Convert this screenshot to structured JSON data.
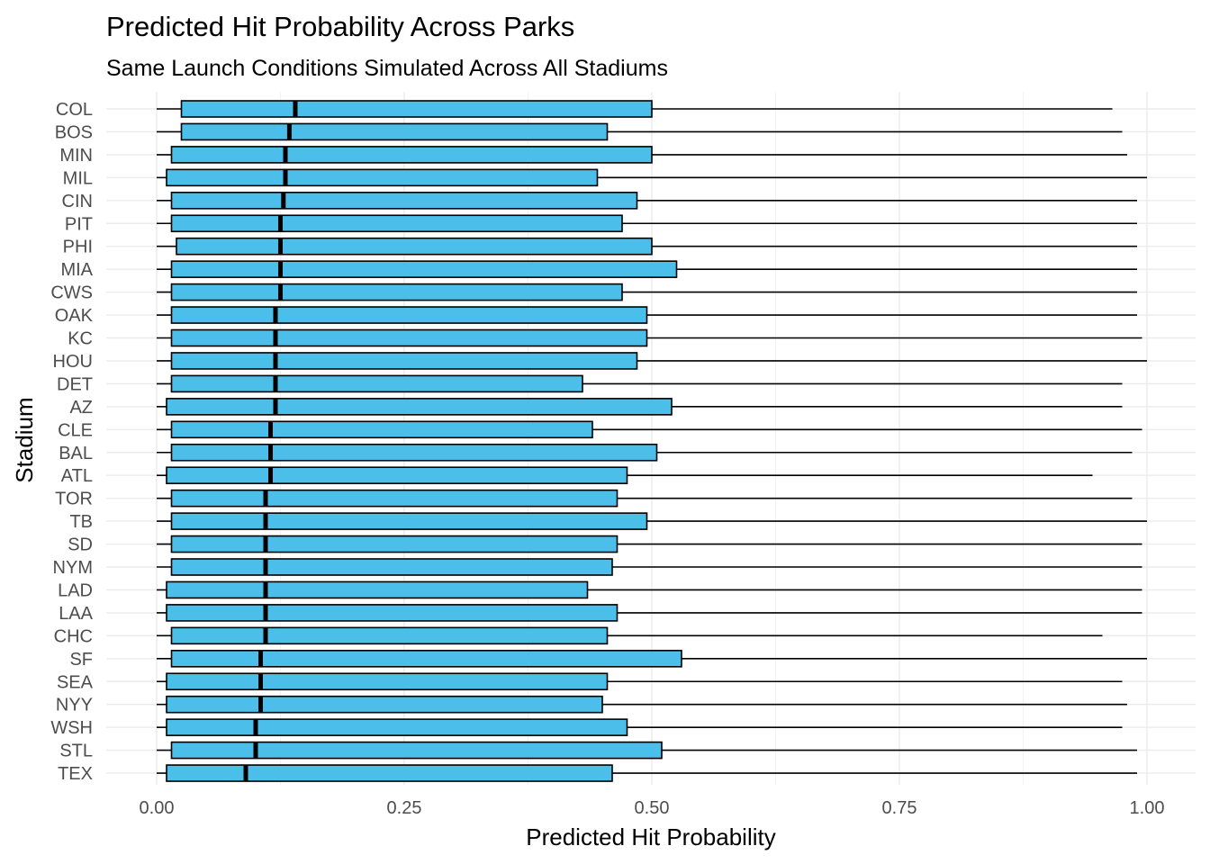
{
  "chart_data": {
    "type": "boxplot",
    "title": "Predicted Hit Probability Across Parks",
    "subtitle": "Same Launch Conditions Simulated Across All Stadiums",
    "xlabel": "Predicted Hit Probability",
    "ylabel": "Stadium",
    "xlim": [
      0,
      1
    ],
    "x_ticks": [
      "0.00",
      "0.25",
      "0.50",
      "0.75",
      "1.00"
    ],
    "grid": true,
    "legend": "none",
    "fill_color": "#4bbfea",
    "outline_color": "#000000",
    "categories": [
      "COL",
      "BOS",
      "MIN",
      "MIL",
      "CIN",
      "PIT",
      "PHI",
      "MIA",
      "CWS",
      "OAK",
      "KC",
      "HOU",
      "DET",
      "AZ",
      "CLE",
      "BAL",
      "ATL",
      "TOR",
      "TB",
      "SD",
      "NYM",
      "LAD",
      "LAA",
      "CHC",
      "SF",
      "SEA",
      "NYY",
      "WSH",
      "STL",
      "TEX"
    ],
    "series": [
      {
        "category": "COL",
        "min": 0.0,
        "q1": 0.025,
        "median": 0.14,
        "q3": 0.5,
        "max": 0.965
      },
      {
        "category": "BOS",
        "min": 0.0,
        "q1": 0.025,
        "median": 0.134,
        "q3": 0.455,
        "max": 0.975
      },
      {
        "category": "MIN",
        "min": 0.0,
        "q1": 0.015,
        "median": 0.13,
        "q3": 0.5,
        "max": 0.98
      },
      {
        "category": "MIL",
        "min": 0.0,
        "q1": 0.01,
        "median": 0.13,
        "q3": 0.445,
        "max": 1.0
      },
      {
        "category": "CIN",
        "min": 0.0,
        "q1": 0.015,
        "median": 0.128,
        "q3": 0.485,
        "max": 0.99
      },
      {
        "category": "PIT",
        "min": 0.0,
        "q1": 0.015,
        "median": 0.125,
        "q3": 0.47,
        "max": 0.99
      },
      {
        "category": "PHI",
        "min": 0.0,
        "q1": 0.02,
        "median": 0.125,
        "q3": 0.5,
        "max": 0.99
      },
      {
        "category": "MIA",
        "min": 0.0,
        "q1": 0.015,
        "median": 0.125,
        "q3": 0.525,
        "max": 0.99
      },
      {
        "category": "CWS",
        "min": 0.0,
        "q1": 0.015,
        "median": 0.125,
        "q3": 0.47,
        "max": 0.99
      },
      {
        "category": "OAK",
        "min": 0.0,
        "q1": 0.015,
        "median": 0.12,
        "q3": 0.495,
        "max": 0.99
      },
      {
        "category": "KC",
        "min": 0.0,
        "q1": 0.015,
        "median": 0.12,
        "q3": 0.495,
        "max": 0.995
      },
      {
        "category": "HOU",
        "min": 0.0,
        "q1": 0.015,
        "median": 0.12,
        "q3": 0.485,
        "max": 1.0
      },
      {
        "category": "DET",
        "min": 0.0,
        "q1": 0.015,
        "median": 0.12,
        "q3": 0.43,
        "max": 0.975
      },
      {
        "category": "AZ",
        "min": 0.0,
        "q1": 0.01,
        "median": 0.12,
        "q3": 0.52,
        "max": 0.975
      },
      {
        "category": "CLE",
        "min": 0.0,
        "q1": 0.015,
        "median": 0.115,
        "q3": 0.44,
        "max": 0.995
      },
      {
        "category": "BAL",
        "min": 0.0,
        "q1": 0.015,
        "median": 0.115,
        "q3": 0.505,
        "max": 0.985
      },
      {
        "category": "ATL",
        "min": 0.0,
        "q1": 0.01,
        "median": 0.115,
        "q3": 0.475,
        "max": 0.945
      },
      {
        "category": "TOR",
        "min": 0.0,
        "q1": 0.015,
        "median": 0.11,
        "q3": 0.465,
        "max": 0.985
      },
      {
        "category": "TB",
        "min": 0.0,
        "q1": 0.015,
        "median": 0.11,
        "q3": 0.495,
        "max": 1.0
      },
      {
        "category": "SD",
        "min": 0.0,
        "q1": 0.015,
        "median": 0.11,
        "q3": 0.465,
        "max": 0.995
      },
      {
        "category": "NYM",
        "min": 0.0,
        "q1": 0.015,
        "median": 0.11,
        "q3": 0.46,
        "max": 0.995
      },
      {
        "category": "LAD",
        "min": 0.0,
        "q1": 0.01,
        "median": 0.11,
        "q3": 0.435,
        "max": 0.995
      },
      {
        "category": "LAA",
        "min": 0.0,
        "q1": 0.01,
        "median": 0.11,
        "q3": 0.465,
        "max": 0.995
      },
      {
        "category": "CHC",
        "min": 0.0,
        "q1": 0.015,
        "median": 0.11,
        "q3": 0.455,
        "max": 0.955
      },
      {
        "category": "SF",
        "min": 0.0,
        "q1": 0.015,
        "median": 0.105,
        "q3": 0.53,
        "max": 1.0
      },
      {
        "category": "SEA",
        "min": 0.0,
        "q1": 0.01,
        "median": 0.105,
        "q3": 0.455,
        "max": 0.975
      },
      {
        "category": "NYY",
        "min": 0.0,
        "q1": 0.01,
        "median": 0.105,
        "q3": 0.45,
        "max": 0.98
      },
      {
        "category": "WSH",
        "min": 0.0,
        "q1": 0.01,
        "median": 0.1,
        "q3": 0.475,
        "max": 0.975
      },
      {
        "category": "STL",
        "min": 0.0,
        "q1": 0.015,
        "median": 0.1,
        "q3": 0.51,
        "max": 0.99
      },
      {
        "category": "TEX",
        "min": 0.0,
        "q1": 0.01,
        "median": 0.09,
        "q3": 0.46,
        "max": 0.99
      }
    ]
  }
}
